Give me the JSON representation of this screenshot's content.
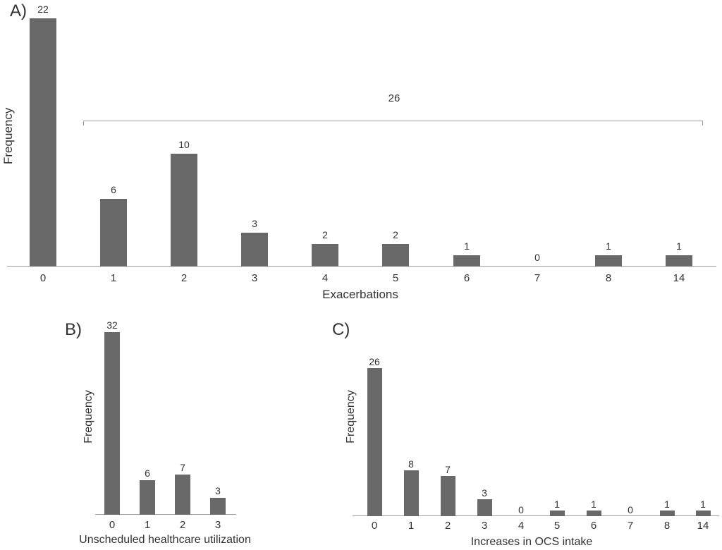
{
  "colors": {
    "bar": "#696969",
    "axis_line": "#9c9c9c",
    "text": "#333333",
    "background": "#ffffff"
  },
  "chart_data": [
    {
      "type": "bar",
      "panel_label": "A)",
      "xlabel": "Exacerbations",
      "ylabel": "Frequency",
      "categories": [
        "0",
        "1",
        "2",
        "3",
        "4",
        "5",
        "6",
        "7",
        "8",
        "14"
      ],
      "values": [
        22,
        6,
        10,
        3,
        2,
        2,
        1,
        0,
        1,
        1
      ],
      "ylim": [
        0,
        22
      ],
      "grid": false,
      "legend_position": "none",
      "annotation": {
        "label": "26",
        "description": "bracket spanning categories 1 through 14"
      }
    },
    {
      "type": "bar",
      "panel_label": "B)",
      "xlabel": "Unscheduled healthcare utilization",
      "ylabel": "Frequency",
      "categories": [
        "0",
        "1",
        "2",
        "3"
      ],
      "values": [
        32,
        6,
        7,
        3
      ],
      "ylim": [
        0,
        32
      ],
      "grid": false,
      "legend_position": "none"
    },
    {
      "type": "bar",
      "panel_label": "C)",
      "xlabel": "Increases in OCS intake",
      "ylabel": "Frequency",
      "categories": [
        "0",
        "1",
        "2",
        "3",
        "4",
        "5",
        "6",
        "7",
        "8",
        "14"
      ],
      "values": [
        26,
        8,
        7,
        3,
        0,
        1,
        1,
        0,
        1,
        1
      ],
      "ylim": [
        0,
        26
      ],
      "grid": false,
      "legend_position": "none"
    }
  ]
}
